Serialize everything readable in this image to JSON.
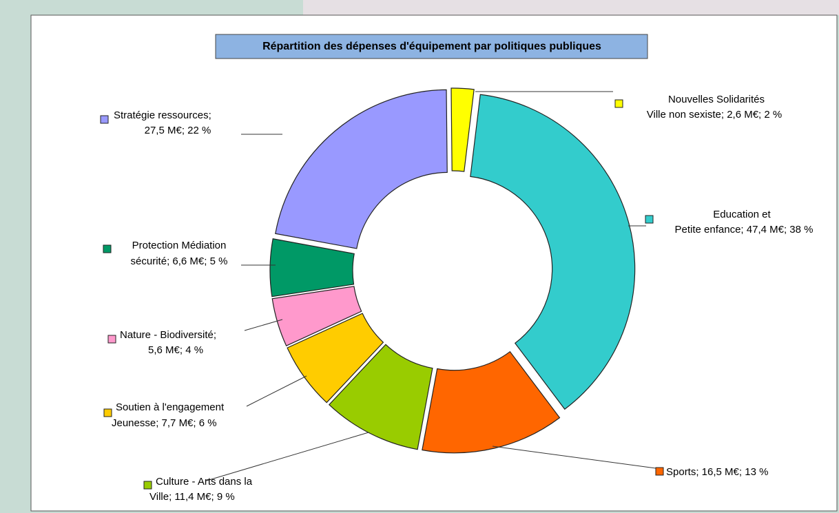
{
  "chart_data": {
    "type": "donut",
    "title": "Répartition des dépenses d'équipement par politiques publiques",
    "categories": [
      [
        "Nouvelles Solidarités",
        "Ville non sexiste;  2,6 M€; 2 %"
      ],
      [
        "Education et",
        "Petite enfance;  47,4 M€; 38 %"
      ],
      [
        "Sports;  16,5 M€; 13 %"
      ],
      [
        "Culture - Arts dans la",
        "Ville;  11,4 M€; 9 %"
      ],
      [
        "Soutien à l'engagement",
        "Jeunesse;  7,7 M€; 6 %"
      ],
      [
        "Nature - Biodiversité;",
        "5,6 M€; 4 %"
      ],
      [
        "Protection Médiation",
        "sécurité;  6,6 M€; 5 %"
      ],
      [
        "Stratégie ressources;",
        "27,5 M€; 22 %"
      ]
    ],
    "values": [
      2.6,
      47.4,
      16.5,
      11.4,
      7.7,
      5.6,
      6.6,
      27.5
    ],
    "colors": [
      "#ffff00",
      "#33cccc",
      "#ff6600",
      "#99cc00",
      "#ffcc00",
      "#ff99cc",
      "#009966",
      "#9999ff"
    ]
  }
}
